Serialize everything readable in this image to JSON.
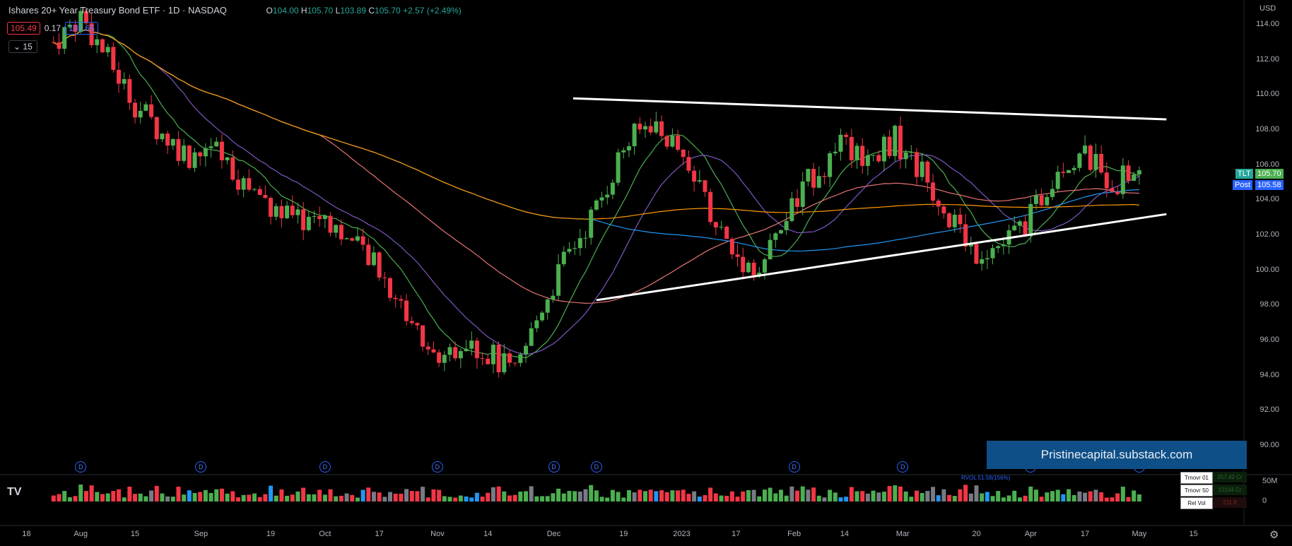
{
  "header": {
    "title": "Ishares 20+ Year Treasury Bond ETF · 1D · NASDAQ",
    "open_label": "O",
    "open": "104.00",
    "high_label": "H",
    "high": "105.70",
    "low_label": "L",
    "low": "103.89",
    "close_label": "C",
    "close": "105.70",
    "change": "+2.57 (+2.49%)"
  },
  "quote": {
    "bid": "105.49",
    "spread": "0.17",
    "ask": "105.66"
  },
  "indicators_toggle": "⌄ 15",
  "currency": "USD",
  "price_axis": [
    "114.00",
    "112.00",
    "110.00",
    "108.00",
    "106.00",
    "104.00",
    "102.00",
    "100.00",
    "98.00",
    "96.00",
    "94.00",
    "92.00",
    "90.00"
  ],
  "symbol_tag": {
    "label": "TLT",
    "value": "105.70"
  },
  "post_tag": {
    "label": "Post",
    "value": "105.58"
  },
  "date_axis": [
    "18",
    "Aug",
    "15",
    "Sep",
    "19",
    "Oct",
    "17",
    "Nov",
    "14",
    "Dec",
    "19",
    "2023",
    "17",
    "Feb",
    "14",
    "Mar",
    "20",
    "Apr",
    "17",
    "May",
    "15"
  ],
  "dividend_marker": "D",
  "volume_axis": [
    "50M",
    "0"
  ],
  "rvol_label": "RVOL 51.58(156%)",
  "turnover": [
    {
      "label": "Trnovr 01",
      "value": "257.42 Cr"
    },
    {
      "label": "Trnovr 50",
      "value": "12104 Cr"
    },
    {
      "label": "Rel Vol",
      "value": "211.9"
    }
  ],
  "watermark": "Pristinecapital.substack.com",
  "logo": "TV",
  "colors": {
    "up": "#4caf50",
    "down": "#f23645",
    "ma10": "#4caf50",
    "ma20": "#7e57c2",
    "ma50": "#e57373",
    "ma100": "#2196f3",
    "ma200": "#ff9800",
    "trend": "#ffffff"
  },
  "chart_data": {
    "type": "candlestick",
    "title": "Ishares 20+ Year Treasury Bond ETF · 1D · NASDAQ",
    "ylim": [
      89,
      115
    ],
    "x_range": [
      "Jul 2022",
      "May 2023"
    ],
    "close_path": [
      [
        "2022-07-25",
        113.0
      ],
      [
        "2022-08-01",
        114.5
      ],
      [
        "2022-08-08",
        112.0
      ],
      [
        "2022-08-15",
        109.5
      ],
      [
        "2022-08-22",
        107.8
      ],
      [
        "2022-08-29",
        106.5
      ],
      [
        "2022-09-05",
        106.8
      ],
      [
        "2022-09-12",
        105.0
      ],
      [
        "2022-09-19",
        103.8
      ],
      [
        "2022-09-26",
        102.8
      ],
      [
        "2022-10-03",
        103.2
      ],
      [
        "2022-10-10",
        101.5
      ],
      [
        "2022-10-17",
        100.0
      ],
      [
        "2022-10-24",
        97.5
      ],
      [
        "2022-10-31",
        95.0
      ],
      [
        "2022-11-07",
        95.8
      ],
      [
        "2022-11-14",
        95.3
      ],
      [
        "2022-11-21",
        94.0
      ],
      [
        "2022-11-28",
        98.0
      ],
      [
        "2022-12-05",
        101.0
      ],
      [
        "2022-12-12",
        103.5
      ],
      [
        "2022-12-19",
        107.0
      ],
      [
        "2022-12-26",
        108.5
      ],
      [
        "2023-01-02",
        107.0
      ],
      [
        "2023-01-09",
        104.0
      ],
      [
        "2023-01-16",
        101.0
      ],
      [
        "2023-01-23",
        100.0
      ],
      [
        "2023-01-30",
        103.0
      ],
      [
        "2023-02-06",
        105.5
      ],
      [
        "2023-02-13",
        107.0
      ],
      [
        "2023-02-20",
        106.5
      ],
      [
        "2023-02-27",
        107.5
      ],
      [
        "2023-03-06",
        105.5
      ],
      [
        "2023-03-13",
        103.0
      ],
      [
        "2023-03-20",
        101.0
      ],
      [
        "2023-03-27",
        101.5
      ],
      [
        "2023-04-03",
        103.0
      ],
      [
        "2023-04-10",
        106.0
      ],
      [
        "2023-04-17",
        106.5
      ],
      [
        "2023-04-24",
        105.0
      ],
      [
        "2023-05-01",
        105.7
      ]
    ],
    "trendlines": [
      {
        "name": "upper",
        "from": [
          "2022-12-06",
          109.8
        ],
        "to": [
          "2023-05-08",
          108.6
        ]
      },
      {
        "name": "lower",
        "from": [
          "2022-12-12",
          98.3
        ],
        "to": [
          "2023-05-08",
          103.2
        ]
      }
    ],
    "moving_averages": [
      "10",
      "20",
      "50",
      "100",
      "200"
    ],
    "last": {
      "open": 104.0,
      "high": 105.7,
      "low": 103.89,
      "close": 105.7,
      "change": 2.57,
      "change_pct": 2.49
    }
  }
}
